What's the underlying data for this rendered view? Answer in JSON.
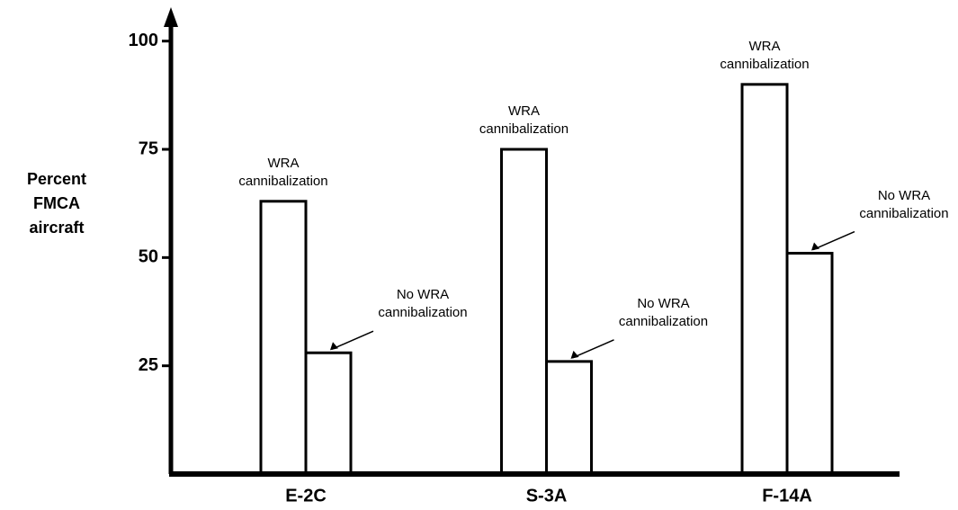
{
  "chart_data": {
    "type": "bar",
    "y_label": "Percent FMCA aircraft",
    "categories": [
      "E-2C",
      "S-3A",
      "F-14A"
    ],
    "series": [
      {
        "name": "WRA cannibalization",
        "color": "#ffffff",
        "values": [
          63,
          75,
          90
        ]
      },
      {
        "name": "No WRA cannibalization",
        "color": "#ffffff",
        "values": [
          28,
          26,
          51
        ]
      }
    ],
    "ylim": [
      0,
      107
    ],
    "yticks": [
      25,
      50,
      75,
      100
    ],
    "grid": false
  }
}
